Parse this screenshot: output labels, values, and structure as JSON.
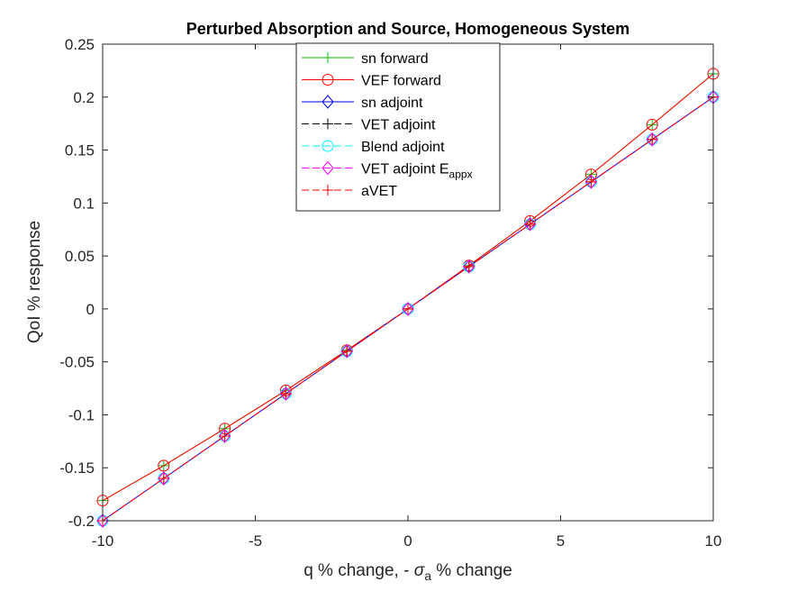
{
  "chart_data": {
    "type": "line",
    "title": "Perturbed Absorption and Source, Homogeneous System",
    "xlabel": {
      "prefix": "q % change, - ",
      "symbol": "σ",
      "subscript": "a",
      "suffix": " % change"
    },
    "ylabel": "QoI % response",
    "xlim": [
      -10,
      10
    ],
    "ylim": [
      -0.2,
      0.25
    ],
    "xticks": [
      -10,
      -5,
      0,
      5,
      10
    ],
    "xtick_labels": [
      "-10",
      "-5",
      "0",
      "5",
      "10"
    ],
    "yticks": [
      -0.2,
      -0.15,
      -0.1,
      -0.05,
      0,
      0.05,
      0.1,
      0.15,
      0.2,
      0.25
    ],
    "ytick_labels": [
      "-0.2",
      "-0.15",
      "-0.1",
      "-0.05",
      "0",
      "0.05",
      "0.1",
      "0.15",
      "0.2",
      "0.25"
    ],
    "grid": false,
    "legend_position": "top-center",
    "x": [
      -10,
      -8,
      -6,
      -4,
      -2,
      0,
      2,
      4,
      6,
      8,
      10
    ],
    "series": [
      {
        "name": "sn forward",
        "color": "#00c000",
        "dash": "solid",
        "marker": "plus",
        "values": [
          -0.181,
          -0.148,
          -0.113,
          -0.077,
          -0.039,
          0,
          0.041,
          0.083,
          0.127,
          0.174,
          0.222
        ]
      },
      {
        "name": "VEF forward",
        "color": "#ff0000",
        "dash": "solid",
        "marker": "circle",
        "values": [
          -0.181,
          -0.148,
          -0.113,
          -0.077,
          -0.039,
          0,
          0.041,
          0.083,
          0.127,
          0.174,
          0.222
        ]
      },
      {
        "name": "sn adjoint",
        "color": "#0000ff",
        "dash": "solid",
        "marker": "diamond",
        "values": [
          -0.2,
          -0.16,
          -0.12,
          -0.08,
          -0.04,
          0,
          0.04,
          0.08,
          0.12,
          0.16,
          0.2
        ]
      },
      {
        "name": "VET adjoint",
        "color": "#000000",
        "dash": "dashed",
        "marker": "plus",
        "values": [
          -0.2,
          -0.16,
          -0.12,
          -0.08,
          -0.04,
          0,
          0.04,
          0.08,
          0.12,
          0.16,
          0.2
        ]
      },
      {
        "name": "Blend adjoint",
        "color": "#00ffff",
        "dash": "dashed",
        "marker": "circle",
        "values": [
          -0.2,
          -0.16,
          -0.12,
          -0.08,
          -0.04,
          0,
          0.04,
          0.08,
          0.12,
          0.16,
          0.2
        ]
      },
      {
        "name": "VET adjoint E",
        "name_subscript": "appx",
        "color": "#ff00ff",
        "dash": "dashed",
        "marker": "diamond",
        "values": [
          -0.2,
          -0.16,
          -0.12,
          -0.08,
          -0.04,
          0,
          0.04,
          0.08,
          0.12,
          0.16,
          0.2
        ]
      },
      {
        "name": "aVET",
        "color": "#ff0000",
        "dash": "dashed",
        "marker": "plus",
        "values": [
          -0.2,
          -0.16,
          -0.12,
          -0.08,
          -0.04,
          0,
          0.04,
          0.08,
          0.12,
          0.16,
          0.2
        ]
      }
    ]
  }
}
